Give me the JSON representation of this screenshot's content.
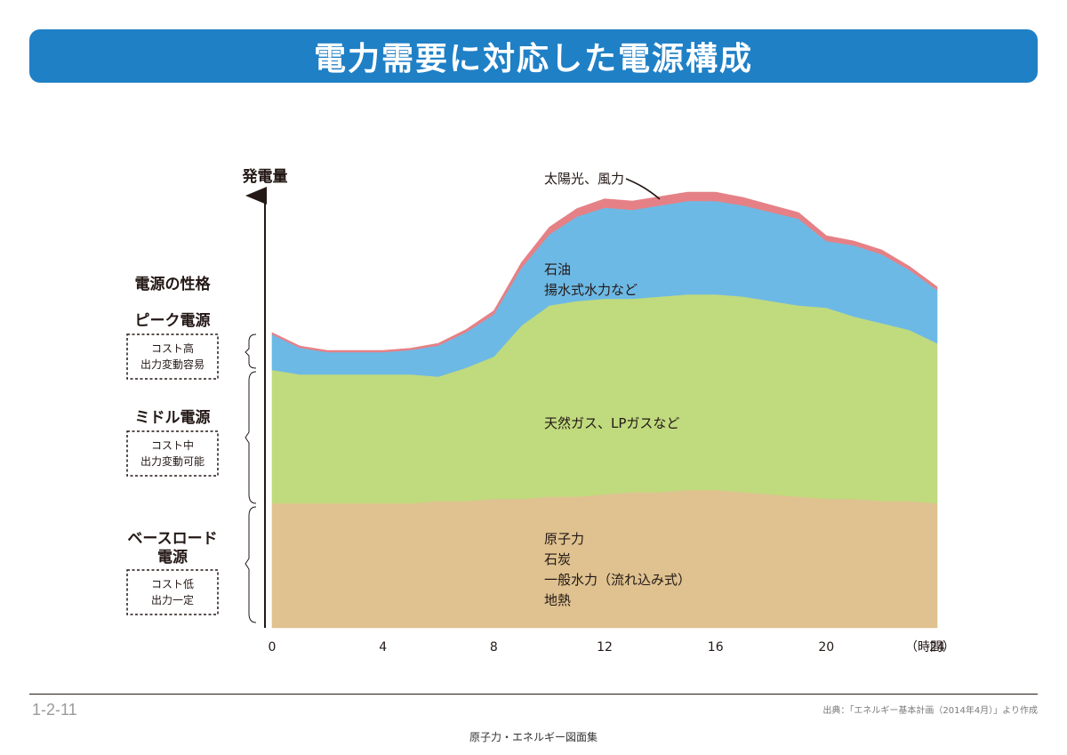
{
  "header": {
    "title": "電力需要に対応した電源構成"
  },
  "chart_data": {
    "type": "area",
    "stacked": true,
    "title": "電力需要に対応した電源構成",
    "ylabel": "発電量",
    "xlabel": "（時間）",
    "xlim": [
      0,
      24
    ],
    "ylim": [
      0,
      100
    ],
    "ticks": [
      "0",
      "4",
      "8",
      "12",
      "16",
      "20",
      "24"
    ],
    "tick_values": [
      0,
      4,
      8,
      12,
      16,
      20,
      24
    ],
    "x": [
      0,
      1,
      2,
      3,
      4,
      5,
      6,
      7,
      8,
      9,
      10,
      11,
      12,
      13,
      14,
      15,
      16,
      17,
      18,
      19,
      20,
      21,
      22,
      23,
      24
    ],
    "series": [
      {
        "name": "原子力 石炭 一般水力（流れ込み式） 地熱",
        "color": "#dfc290",
        "values": [
          28,
          28,
          28,
          28,
          28,
          28,
          28.5,
          28.5,
          29,
          29,
          29.5,
          29.5,
          30,
          30.5,
          30.5,
          31,
          31,
          30.5,
          30,
          29.5,
          29,
          29,
          28.5,
          28.5,
          28
        ]
      },
      {
        "name": "天然ガス、LPガスなど",
        "color": "#c0da7e",
        "values": [
          30,
          29,
          29,
          29,
          29,
          29,
          28,
          30,
          32,
          39,
          43,
          44,
          44,
          43.5,
          44,
          44,
          44,
          44,
          43.5,
          43,
          43,
          41,
          40,
          38.5,
          36
        ]
      },
      {
        "name": "石油 揚水式水力など",
        "color": "#6db9e5",
        "values": [
          8,
          6,
          5,
          5,
          5,
          5.5,
          7,
          8,
          9.5,
          13,
          16,
          19,
          20.5,
          20,
          20.5,
          21,
          21,
          20.5,
          20,
          19.5,
          15,
          16,
          15.5,
          13.5,
          12
        ]
      },
      {
        "name": "太陽光、風力",
        "color": "#e58186",
        "values": [
          0.4,
          0.4,
          0.4,
          0.4,
          0.4,
          0.4,
          0.5,
          0.6,
          0.8,
          1.2,
          1.6,
          1.8,
          2,
          2,
          2,
          2,
          2,
          1.8,
          1.6,
          1.4,
          1.2,
          1,
          1,
          0.8,
          0.7
        ]
      }
    ],
    "legend_placement": "inline labels"
  },
  "labels": {
    "solar_wind": "太陽光、風力",
    "peak_inside_1": "石油",
    "peak_inside_2": "揚水式水力など",
    "middle_inside": "天然ガス、LPガスなど",
    "base_inside_1": "原子力",
    "base_inside_2": "石炭",
    "base_inside_3": "一般水力（流れ込み式）",
    "base_inside_4": "地熱"
  },
  "categories": {
    "heading": "電源の性格",
    "peak": {
      "name": "ピーク電源",
      "desc1": "コスト高",
      "desc2": "出力変動容易"
    },
    "middle": {
      "name": "ミドル電源",
      "desc1": "コスト中",
      "desc2": "出力変動可能"
    },
    "base": {
      "name1": "ベースロード",
      "name2": "電源",
      "desc1": "コスト低",
      "desc2": "出力一定"
    }
  },
  "footer": {
    "figure_number": "1-2-11",
    "source": "出典：「エネルギー基本計画（2014年4月）」より作成",
    "book_title": "原子力・エネルギー図面集"
  }
}
